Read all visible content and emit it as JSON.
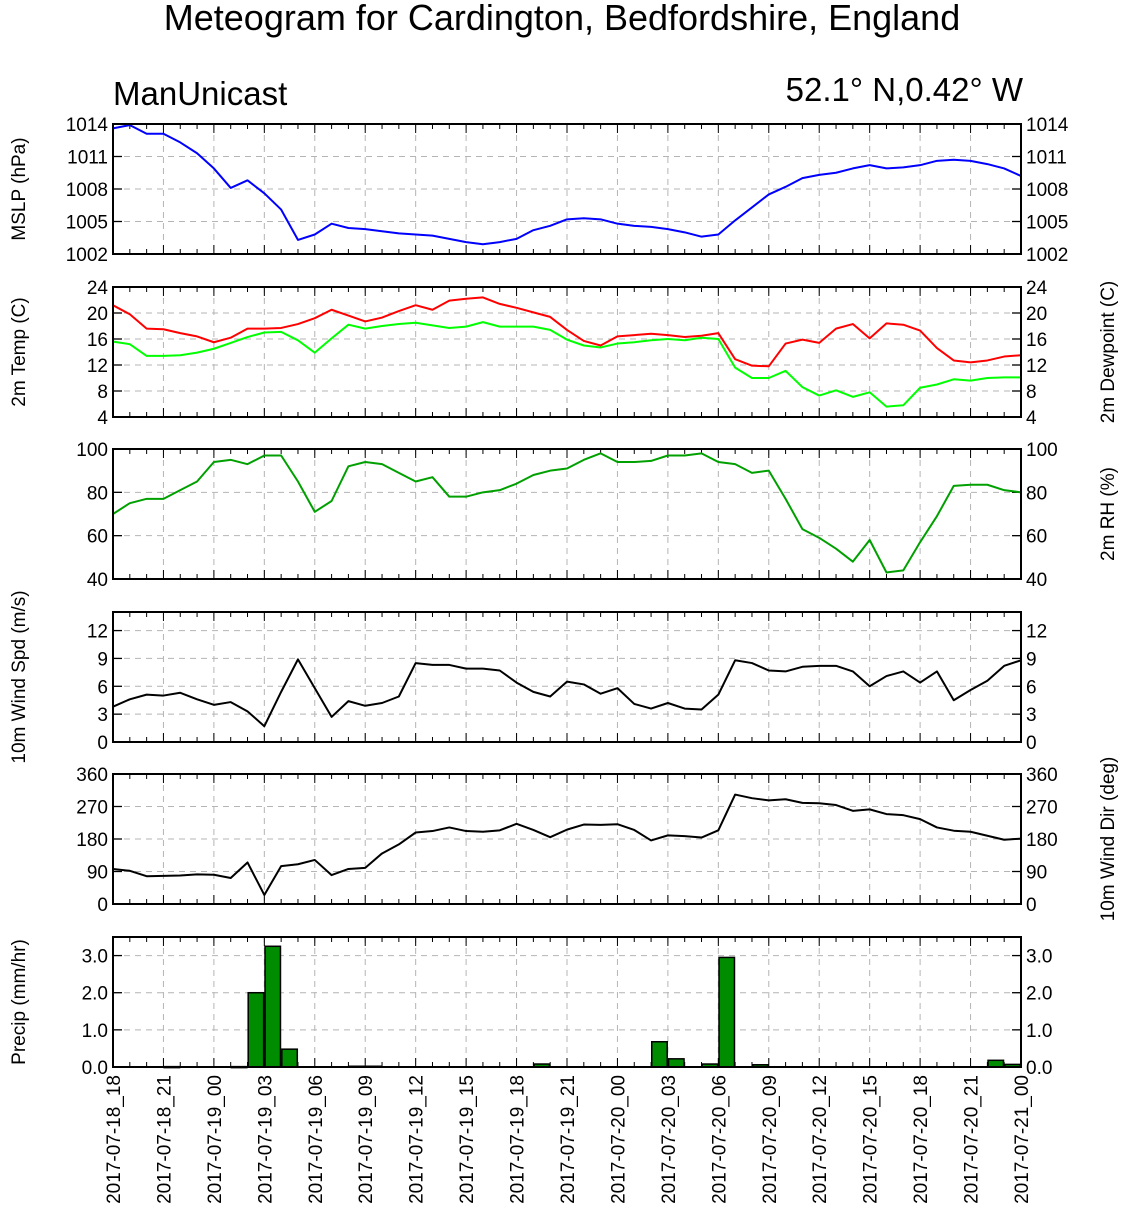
{
  "header": {
    "title": "Meteogram for Cardington, Bedfordshire, England",
    "model": "ManUnicast",
    "location": "52.1° N,0.42° W"
  },
  "chart_data": {
    "type": "line",
    "x_tick_labels": [
      "2017-07-18_18",
      "2017-07-18_21",
      "2017-07-19_00",
      "2017-07-19_03",
      "2017-07-19_06",
      "2017-07-19_09",
      "2017-07-19_12",
      "2017-07-19_15",
      "2017-07-19_18",
      "2017-07-19_21",
      "2017-07-20_00",
      "2017-07-20_03",
      "2017-07-20_06",
      "2017-07-20_09",
      "2017-07-20_12",
      "2017-07-20_15",
      "2017-07-20_18",
      "2017-07-20_21",
      "2017-07-21_00"
    ],
    "x_step_hours": 1,
    "panels": [
      {
        "id": "mslp",
        "type": "line",
        "ylabel_left": "MSLP (hPa)",
        "ylabel_right": "",
        "ylim": [
          1002,
          1014
        ],
        "yticks": [
          1002,
          1005,
          1008,
          1011,
          1014
        ],
        "series": [
          {
            "color": "#0000ff",
            "values": [
              1013.6,
              1013.9,
              1013.1,
              1013.1,
              1012.3,
              1011.3,
              1009.9,
              1008.1,
              1008.8,
              1007.6,
              1006.1,
              1003.3,
              1003.8,
              1004.8,
              1004.4,
              1004.3,
              1004.1,
              1003.9,
              1003.8,
              1003.7,
              1003.4,
              1003.1,
              1002.9,
              1003.1,
              1003.4,
              1004.2,
              1004.6,
              1005.2,
              1005.3,
              1005.2,
              1004.8,
              1004.6,
              1004.5,
              1004.3,
              1004.0,
              1003.6,
              1003.8,
              1005.1,
              1006.3,
              1007.5,
              1008.2,
              1009.0,
              1009.3,
              1009.5,
              1009.9,
              1010.2,
              1009.9,
              1010.0,
              1010.2,
              1010.6,
              1010.7,
              1010.6,
              1010.3,
              1009.9,
              1009.2
            ]
          }
        ]
      },
      {
        "id": "temp",
        "type": "line",
        "ylabel_left": "2m Temp (C)",
        "ylabel_right": "2m Dewpoint (C)",
        "ylim": [
          4,
          24
        ],
        "yticks": [
          4,
          8,
          12,
          16,
          20,
          24
        ],
        "series": [
          {
            "color": "#ff0000",
            "values": [
              21.2,
              19.8,
              17.6,
              17.5,
              16.9,
              16.4,
              15.5,
              16.2,
              17.6,
              17.6,
              17.7,
              18.3,
              19.2,
              20.5,
              19.6,
              18.7,
              19.3,
              20.3,
              21.2,
              20.5,
              21.9,
              22.2,
              22.4,
              21.4,
              20.8,
              20.1,
              19.4,
              17.4,
              15.7,
              15.0,
              16.4,
              16.6,
              16.8,
              16.6,
              16.3,
              16.5,
              16.9,
              12.9,
              11.9,
              11.8,
              15.3,
              15.9,
              15.4,
              17.6,
              18.3,
              16.1,
              18.4,
              18.2,
              17.3,
              14.6,
              12.7,
              12.4,
              12.7,
              13.3,
              13.5
            ]
          },
          {
            "color": "#00ff00",
            "values": [
              15.6,
              15.2,
              13.4,
              13.4,
              13.5,
              13.9,
              14.5,
              15.4,
              16.3,
              17.0,
              17.1,
              15.8,
              13.9,
              16.1,
              18.2,
              17.6,
              18.0,
              18.3,
              18.5,
              18.1,
              17.7,
              17.9,
              18.6,
              17.9,
              17.9,
              17.9,
              17.4,
              15.9,
              15.0,
              14.7,
              15.3,
              15.5,
              15.8,
              16.0,
              15.8,
              16.2,
              16.0,
              11.6,
              10.0,
              10.0,
              11.1,
              8.6,
              7.3,
              8.1,
              7.1,
              7.8,
              5.6,
              5.8,
              8.5,
              9.0,
              9.8,
              9.6,
              10.0,
              10.1,
              10.1
            ]
          }
        ]
      },
      {
        "id": "rh",
        "type": "line",
        "ylabel_left": "",
        "ylabel_right": "2m RH (%)",
        "ylim": [
          40,
          100
        ],
        "yticks": [
          40,
          60,
          80,
          100
        ],
        "series": [
          {
            "color": "#00a000",
            "values": [
              70,
              75,
              77,
              77,
              81,
              85,
              94,
              95,
              93,
              97,
              97,
              85,
              71,
              76,
              92,
              94,
              93,
              89,
              85,
              87,
              78,
              78,
              80,
              81,
              84,
              88,
              90,
              91,
              95,
              98,
              94,
              94,
              94.5,
              97,
              97,
              98,
              94,
              93,
              89,
              90,
              77,
              63,
              59,
              54,
              48,
              58,
              43,
              44,
              57,
              69,
              83,
              83.5,
              83.5,
              81,
              80
            ]
          }
        ]
      },
      {
        "id": "wspd",
        "type": "line",
        "ylabel_left": "10m Wind Spd (m/s)",
        "ylabel_right": "",
        "ylim": [
          0,
          14
        ],
        "yticks": [
          0,
          3,
          6,
          9,
          12
        ],
        "series": [
          {
            "color": "#000000",
            "values": [
              3.8,
              4.6,
              5.1,
              5.0,
              5.3,
              4.6,
              4.0,
              4.3,
              3.3,
              1.7,
              5.4,
              8.9,
              5.8,
              2.7,
              4.4,
              3.9,
              4.2,
              4.9,
              8.5,
              8.3,
              8.3,
              7.9,
              7.9,
              7.7,
              6.4,
              5.4,
              4.9,
              6.5,
              6.2,
              5.2,
              5.8,
              4.1,
              3.6,
              4.2,
              3.6,
              3.5,
              5.1,
              8.8,
              8.5,
              7.7,
              7.6,
              8.1,
              8.2,
              8.2,
              7.6,
              6.0,
              7.1,
              7.6,
              6.4,
              7.6,
              4.5,
              5.6,
              6.6,
              8.2,
              8.8
            ]
          }
        ]
      },
      {
        "id": "wdir",
        "type": "line",
        "ylabel_left": "",
        "ylabel_right": "10m Wind Dir (deg)",
        "ylim": [
          0,
          360
        ],
        "yticks": [
          0,
          90,
          180,
          270,
          360
        ],
        "series": [
          {
            "color": "#000000",
            "values": [
              97,
              92,
              77,
              78,
              79,
              82,
              81,
              72,
              115,
              25,
              105,
              110,
              122,
              80,
              97,
              100,
              140,
              165,
              198,
              202,
              212,
              202,
              200,
              204,
              222,
              205,
              185,
              206,
              220,
              219,
              221,
              205,
              176,
              190,
              188,
              184,
              204,
              303,
              293,
              287,
              290,
              280,
              279,
              274,
              258,
              262,
              249,
              246,
              235,
              212,
              203,
              200,
              189,
              178,
              181
            ]
          }
        ]
      },
      {
        "id": "precip",
        "type": "bar",
        "ylabel_left": "Precip (mm/hr)",
        "ylabel_right": "",
        "ylim": [
          0,
          3.5
        ],
        "yticks": [
          0,
          1.0,
          2.0,
          3.0
        ],
        "ytick_labels": [
          "0.0",
          "1.0",
          "2.0",
          "3.0"
        ],
        "bar_color": "#008c00",
        "bars": [
          [
            0,
            0
          ],
          [
            1,
            0
          ],
          [
            2,
            0
          ],
          [
            3,
            0.01
          ],
          [
            4,
            0
          ],
          [
            5,
            0
          ],
          [
            6,
            0
          ],
          [
            7,
            0.01
          ],
          [
            8,
            2.0
          ],
          [
            9,
            3.25
          ],
          [
            10,
            0.48
          ],
          [
            11,
            0
          ],
          [
            12,
            0
          ],
          [
            13,
            0
          ],
          [
            14,
            0.02
          ],
          [
            15,
            0.02
          ],
          [
            16,
            0
          ],
          [
            17,
            0
          ],
          [
            18,
            0
          ],
          [
            19,
            0
          ],
          [
            20,
            0
          ],
          [
            21,
            0
          ],
          [
            22,
            0
          ],
          [
            23,
            0
          ],
          [
            24,
            0
          ],
          [
            25,
            0.08
          ],
          [
            26,
            0
          ],
          [
            27,
            0
          ],
          [
            28,
            0
          ],
          [
            29,
            0
          ],
          [
            30,
            0
          ],
          [
            31,
            0
          ],
          [
            32,
            0.68
          ],
          [
            33,
            0.22
          ],
          [
            34,
            0
          ],
          [
            35,
            0.08
          ],
          [
            36,
            2.95
          ],
          [
            37,
            0
          ],
          [
            38,
            0.06
          ],
          [
            39,
            0
          ],
          [
            40,
            0
          ],
          [
            41,
            0
          ],
          [
            42,
            0
          ],
          [
            43,
            0
          ],
          [
            44,
            0
          ],
          [
            45,
            0
          ],
          [
            46,
            0
          ],
          [
            47,
            0
          ],
          [
            48,
            0
          ],
          [
            49,
            0
          ],
          [
            50,
            0
          ],
          [
            51,
            0
          ],
          [
            52,
            0.18
          ],
          [
            53,
            0.07
          ]
        ]
      }
    ]
  }
}
